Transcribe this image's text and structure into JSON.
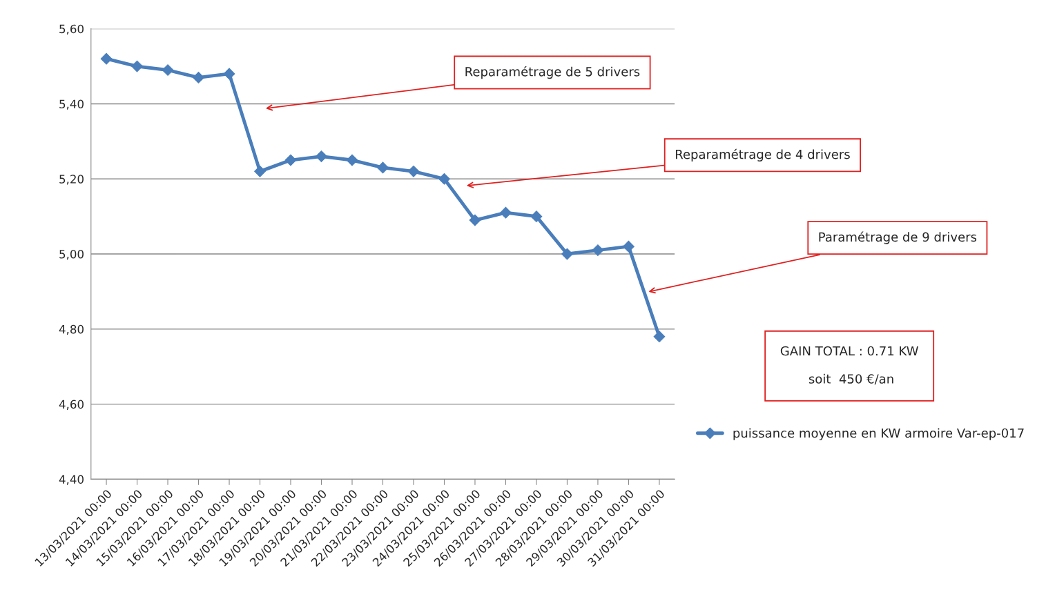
{
  "chart_data": {
    "type": "line",
    "categories": [
      "13/03/2021 00:00",
      "14/03/2021 00:00",
      "15/03/2021 00:00",
      "16/03/2021 00:00",
      "17/03/2021 00:00",
      "18/03/2021 00:00",
      "19/03/2021 00:00",
      "20/03/2021 00:00",
      "21/03/2021 00:00",
      "22/03/2021 00:00",
      "23/03/2021 00:00",
      "24/03/2021 00:00",
      "25/03/2021 00:00",
      "26/03/2021 00:00",
      "27/03/2021 00:00",
      "28/03/2021 00:00",
      "29/03/2021 00:00",
      "30/03/2021 00:00",
      "31/03/2021 00:00"
    ],
    "series": [
      {
        "name": "puissance moyenne en KW armoire Var-ep-017",
        "color": "#4a7ebb",
        "values": [
          5.52,
          5.5,
          5.49,
          5.47,
          5.48,
          5.22,
          5.25,
          5.26,
          5.25,
          5.23,
          5.22,
          5.2,
          5.09,
          5.11,
          5.1,
          5.0,
          5.01,
          5.02,
          4.78
        ]
      }
    ],
    "ylim": [
      4.4,
      5.6
    ],
    "yticks": [
      {
        "value": 4.4,
        "label": "4,40"
      },
      {
        "value": 4.6,
        "label": "4,60"
      },
      {
        "value": 4.8,
        "label": "4,80"
      },
      {
        "value": 5.0,
        "label": "5,00"
      },
      {
        "value": 5.2,
        "label": "5,20"
      },
      {
        "value": 5.4,
        "label": "5,40"
      },
      {
        "value": 5.6,
        "label": "5,60"
      }
    ],
    "grid": "y",
    "legend": "right",
    "marker": "diamond",
    "line_style": "solid",
    "annotations": [
      "Reparamétrage de 5 drivers",
      "Reparamétrage de 4 drivers",
      "Paramétrage de 9 drivers",
      "GAIN TOTAL : 0.71 KW\n\n soit  450 €/an"
    ]
  }
}
